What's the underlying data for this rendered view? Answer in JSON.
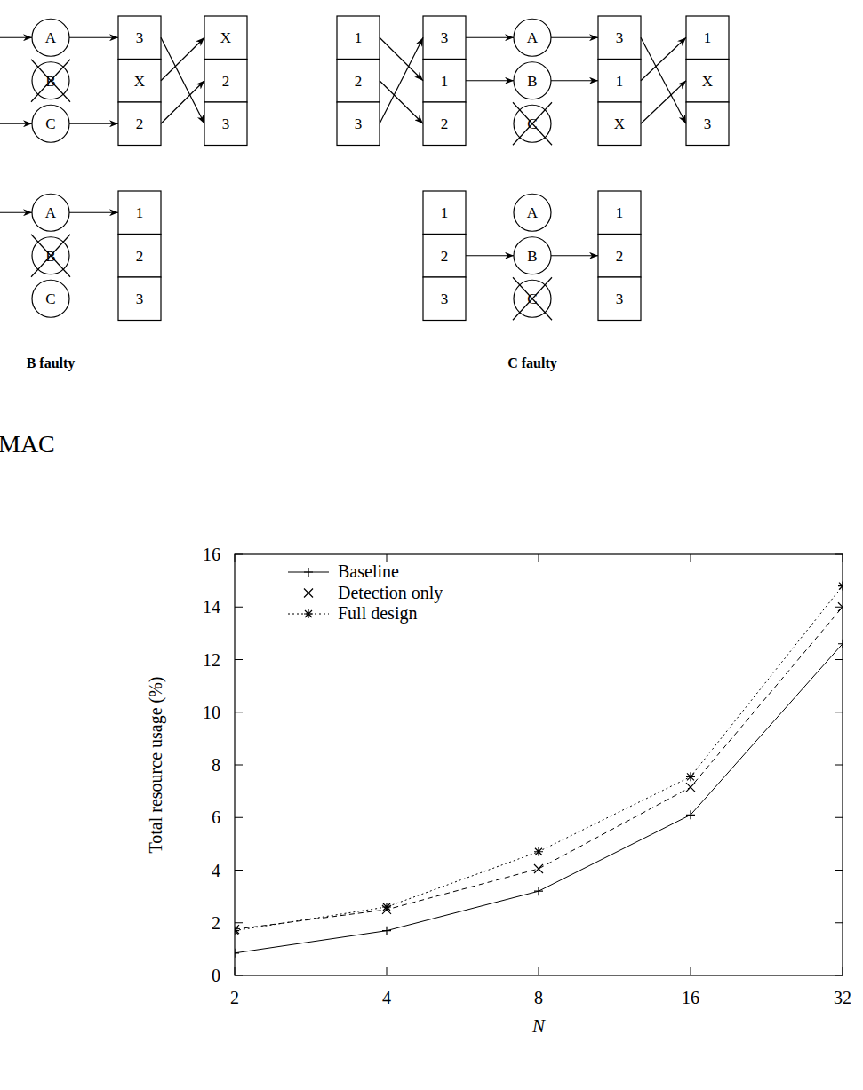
{
  "heading": "MAC",
  "diagram": {
    "panels": [
      {
        "label": "B faulty",
        "top": {
          "nodes": [
            "A",
            "B",
            "C"
          ],
          "boxes": [
            [
              "3",
              "X",
              "2"
            ],
            [
              "X",
              "2",
              "3"
            ]
          ]
        },
        "bottom": {
          "nodes": [
            "A",
            "B",
            "C"
          ],
          "boxes": [
            [
              "1",
              "2",
              "3"
            ]
          ]
        }
      },
      {
        "label": "C faulty",
        "top": {
          "nodes": [
            "A",
            "B",
            "C"
          ],
          "boxes": [
            [
              "1",
              "2",
              "3"
            ],
            [
              "3",
              "1",
              "2"
            ],
            [
              "3",
              "1",
              "X"
            ],
            [
              "1",
              "X",
              "3"
            ]
          ]
        },
        "bottom": {
          "nodes": [
            "A",
            "B",
            "C"
          ],
          "boxes": [
            [
              "1",
              "2",
              "3"
            ],
            [
              "1",
              "2",
              "3"
            ]
          ]
        }
      }
    ]
  },
  "chart_data": {
    "type": "line",
    "x_label": "N",
    "y_label": "Total resource usage (%)",
    "x": [
      2,
      4,
      8,
      16,
      32
    ],
    "log": "x",
    "xlim": [
      2,
      32
    ],
    "xticks": [
      2,
      4,
      8,
      16,
      32
    ],
    "ylim": [
      0,
      16
    ],
    "yticks": [
      0,
      2,
      4,
      6,
      8,
      10,
      12,
      14,
      16
    ],
    "legend": "top-left",
    "grid": false,
    "series": [
      {
        "name": "Baseline",
        "color": "#000000",
        "line_style": "solid",
        "marker": "plus",
        "values": [
          0.85,
          1.7,
          3.2,
          6.1,
          12.6
        ]
      },
      {
        "name": "Detection only",
        "color": "#000000",
        "line_style": "dashed",
        "marker": "x",
        "values": [
          1.75,
          2.5,
          4.05,
          7.15,
          14.0
        ]
      },
      {
        "name": "Full design",
        "color": "#000000",
        "line_style": "dotted",
        "marker": "star",
        "values": [
          1.7,
          2.6,
          4.7,
          7.55,
          14.8
        ]
      }
    ]
  }
}
